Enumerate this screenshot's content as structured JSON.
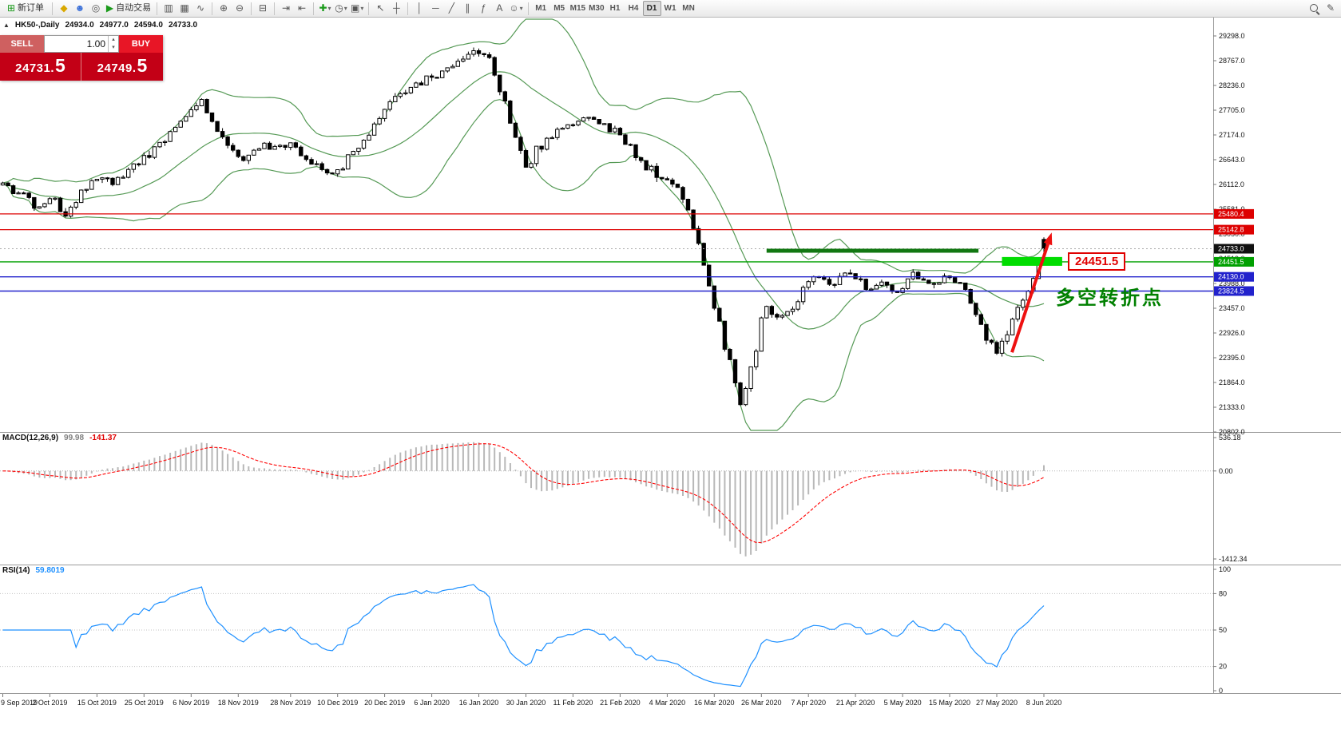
{
  "toolbar": {
    "new_order_label": "新订单",
    "autotrade_label": "自动交易",
    "timeframes": [
      "M1",
      "M5",
      "M15",
      "M30",
      "H1",
      "H4",
      "D1",
      "W1",
      "MN"
    ],
    "active_timeframe": "D1"
  },
  "icons": {
    "new_order": "⊞",
    "metaeditor": "◆",
    "profile": "☻",
    "community": "◎",
    "autotrade_play": "▶",
    "chart_bars": "▥",
    "chart_candles": "▦",
    "chart_line": "∿",
    "zoom_in": "⊕",
    "zoom_out": "⊖",
    "tile_windows": "⊟",
    "auto_scroll": "⇥",
    "chart_shift": "⇤",
    "indicators": "✚",
    "periods": "◷",
    "templates": "▣",
    "cursor": "↖",
    "crosshair": "┼",
    "vline": "│",
    "hline": "─",
    "trendline": "╱",
    "channel": "∥",
    "fibonacci": "ƒ",
    "text_tool": "A",
    "arrows_tool": "☺",
    "dropdown": "▾",
    "edit": "✎",
    "collapse": "▲",
    "spinner_up": "▴",
    "spinner_down": "▾"
  },
  "chart_header": {
    "symbol_period": "HK50-,Daily",
    "open": "24934.0",
    "high": "24977.0",
    "low": "24594.0",
    "close": "24733.0"
  },
  "trade_panel": {
    "sell_label": "SELL",
    "buy_label": "BUY",
    "volume": "1.00",
    "sell_price_main": "24731.",
    "sell_price_big": "5",
    "buy_price_main": "24749.",
    "buy_price_big": "5"
  },
  "price_axis": {
    "max": 29298.0,
    "min": 20802.0,
    "ticks": [
      "29298.0",
      "28767.0",
      "28236.0",
      "27705.0",
      "27174.0",
      "26643.0",
      "26112.0",
      "25581.0",
      "25050.0",
      "24519.0",
      "23988.0",
      "23457.0",
      "22926.0",
      "22395.0",
      "21864.0",
      "21333.0",
      "20802.0"
    ]
  },
  "badges": [
    {
      "label": "25480.4",
      "price": 25480.4,
      "color": "#dd0000",
      "line": true,
      "width": 1.2
    },
    {
      "label": "25142.8",
      "price": 25142.8,
      "color": "#dd0000",
      "line": true,
      "width": 1.2
    },
    {
      "label": "24733.0",
      "price": 24733.0,
      "color": "#111111",
      "line": false
    },
    {
      "label": "24451.5",
      "price": 24451.5,
      "color": "#00a000",
      "line": true,
      "width": 1.4
    },
    {
      "label": "24130.0",
      "price": 24130.0,
      "color": "#2222cc",
      "line": true,
      "width": 1.4
    },
    {
      "label": "23824.5",
      "price": 23824.5,
      "color": "#2222cc",
      "line": true,
      "width": 1.4
    }
  ],
  "annotations": {
    "label_box": "24451.5",
    "turning_point_text": "多空转折点",
    "resistance_segment": {
      "price": 24690,
      "bar_from": 146,
      "bar_to": 186.5
    },
    "support_band": {
      "price": 24460,
      "bar_from": 191,
      "bar_to": 202.5
    },
    "arrow": {
      "from_bar": 192.9,
      "from_price": 22510,
      "to_bar": 200.5,
      "to_price": 25080
    }
  },
  "macd_panel": {
    "title": "MACD(12,26,9)",
    "value_main": "99.98",
    "value_signal": "-141.37",
    "axis": [
      "536.18",
      "0.00",
      "-1412.34"
    ],
    "scale_max": 536.18,
    "scale_min": -1412.34,
    "params": {
      "fast": 12,
      "slow": 26,
      "signal": 9
    }
  },
  "rsi_panel": {
    "title": "RSI(14)",
    "value": "59.8019",
    "period": 14,
    "levels": [
      80,
      50,
      20
    ],
    "axis": [
      "100",
      "80",
      "50",
      "20",
      "0"
    ]
  },
  "date_axis": {
    "ticks": [
      {
        "label": "9 Sep 2019",
        "bar": 0
      },
      {
        "label": "2 Oct 2019",
        "bar": 9
      },
      {
        "label": "15 Oct 2019",
        "bar": 18
      },
      {
        "label": "25 Oct 2019",
        "bar": 27
      },
      {
        "label": "6 Nov 2019",
        "bar": 36
      },
      {
        "label": "18 Nov 2019",
        "bar": 45
      },
      {
        "label": "28 Nov 2019",
        "bar": 55
      },
      {
        "label": "10 Dec 2019",
        "bar": 64
      },
      {
        "label": "20 Dec 2019",
        "bar": 73
      },
      {
        "label": "6 Jan 2020",
        "bar": 82
      },
      {
        "label": "16 Jan 2020",
        "bar": 91
      },
      {
        "label": "30 Jan 2020",
        "bar": 100
      },
      {
        "label": "11 Feb 2020",
        "bar": 109
      },
      {
        "label": "21 Feb 2020",
        "bar": 118
      },
      {
        "label": "4 Mar 2020",
        "bar": 127
      },
      {
        "label": "16 Mar 2020",
        "bar": 136
      },
      {
        "label": "26 Mar 2020",
        "bar": 145
      },
      {
        "label": "7 Apr 2020",
        "bar": 154
      },
      {
        "label": "21 Apr 2020",
        "bar": 163
      },
      {
        "label": "5 May 2020",
        "bar": 172
      },
      {
        "label": "15 May 2020",
        "bar": 181
      },
      {
        "label": "27 May 2020",
        "bar": 190
      },
      {
        "label": "8 Jun 2020",
        "bar": 199
      }
    ]
  },
  "colors": {
    "band_green": "#569a56",
    "macd_hist": "#b8b8b8",
    "macd_signal": "#ff0000",
    "rsi_line": "#1e90ff",
    "arrow_red": "#ee1111",
    "segment_green": "#117711",
    "bright_green": "#00dd00",
    "sell_button": "#cf6060",
    "buy_button": "#e81626",
    "price_panel": "#c30016",
    "bid_badge": "#111111"
  },
  "chart_data": {
    "type": "candlestick",
    "symbol": "HK50",
    "timeframe": "Daily",
    "bar_count": 200,
    "ohlc_display": {
      "open": 24934.0,
      "high": 24977.0,
      "low": 24594.0,
      "close": 24733.0
    },
    "seed": 11,
    "noise": 120,
    "wick_noise": 70,
    "bollinger": {
      "period": 20,
      "deviation": 2
    },
    "price_anchors": [
      [
        0,
        26100
      ],
      [
        3,
        25900
      ],
      [
        6,
        25650
      ],
      [
        9,
        25850
      ],
      [
        12,
        25480
      ],
      [
        15,
        25900
      ],
      [
        18,
        26300
      ],
      [
        21,
        26150
      ],
      [
        24,
        26450
      ],
      [
        27,
        26700
      ],
      [
        30,
        27000
      ],
      [
        33,
        27380
      ],
      [
        36,
        27700
      ],
      [
        38,
        27820
      ],
      [
        41,
        27250
      ],
      [
        44,
        26850
      ],
      [
        46,
        26650
      ],
      [
        48,
        26800
      ],
      [
        51,
        26950
      ],
      [
        55,
        26950
      ],
      [
        58,
        26700
      ],
      [
        60,
        26480
      ],
      [
        62,
        26300
      ],
      [
        64,
        26420
      ],
      [
        66,
        26700
      ],
      [
        68,
        26950
      ],
      [
        70,
        27250
      ],
      [
        73,
        27800
      ],
      [
        76,
        28020
      ],
      [
        79,
        28230
      ],
      [
        82,
        28400
      ],
      [
        85,
        28570
      ],
      [
        88,
        28850
      ],
      [
        91,
        29040
      ],
      [
        93,
        28750
      ],
      [
        95,
        28200
      ],
      [
        97,
        27500
      ],
      [
        99,
        26800
      ],
      [
        100,
        26500
      ],
      [
        102,
        26850
      ],
      [
        105,
        27150
      ],
      [
        108,
        27430
      ],
      [
        111,
        27560
      ],
      [
        114,
        27480
      ],
      [
        117,
        27230
      ],
      [
        120,
        26850
      ],
      [
        123,
        26500
      ],
      [
        126,
        26330
      ],
      [
        129,
        26080
      ],
      [
        131,
        25480
      ],
      [
        133,
        24800
      ],
      [
        135,
        23950
      ],
      [
        137,
        23050
      ],
      [
        139,
        22350
      ],
      [
        140,
        21850
      ],
      [
        141,
        21420
      ],
      [
        142,
        21750
      ],
      [
        144,
        22600
      ],
      [
        145,
        23200
      ],
      [
        146,
        23520
      ],
      [
        148,
        23280
      ],
      [
        150,
        23300
      ],
      [
        152,
        23680
      ],
      [
        154,
        23950
      ],
      [
        156,
        24150
      ],
      [
        158,
        23900
      ],
      [
        161,
        24200
      ],
      [
        163,
        24080
      ],
      [
        166,
        23820
      ],
      [
        168,
        24020
      ],
      [
        170,
        23780
      ],
      [
        172,
        23950
      ],
      [
        174,
        24200
      ],
      [
        176,
        24080
      ],
      [
        178,
        23950
      ],
      [
        180,
        24120
      ],
      [
        182,
        24000
      ],
      [
        184,
        23780
      ],
      [
        186,
        23320
      ],
      [
        188,
        22880
      ],
      [
        190,
        22620
      ],
      [
        191,
        22720
      ],
      [
        193,
        23170
      ],
      [
        195,
        23580
      ],
      [
        197,
        24080
      ],
      [
        198,
        24430
      ],
      [
        199,
        24733
      ]
    ]
  }
}
